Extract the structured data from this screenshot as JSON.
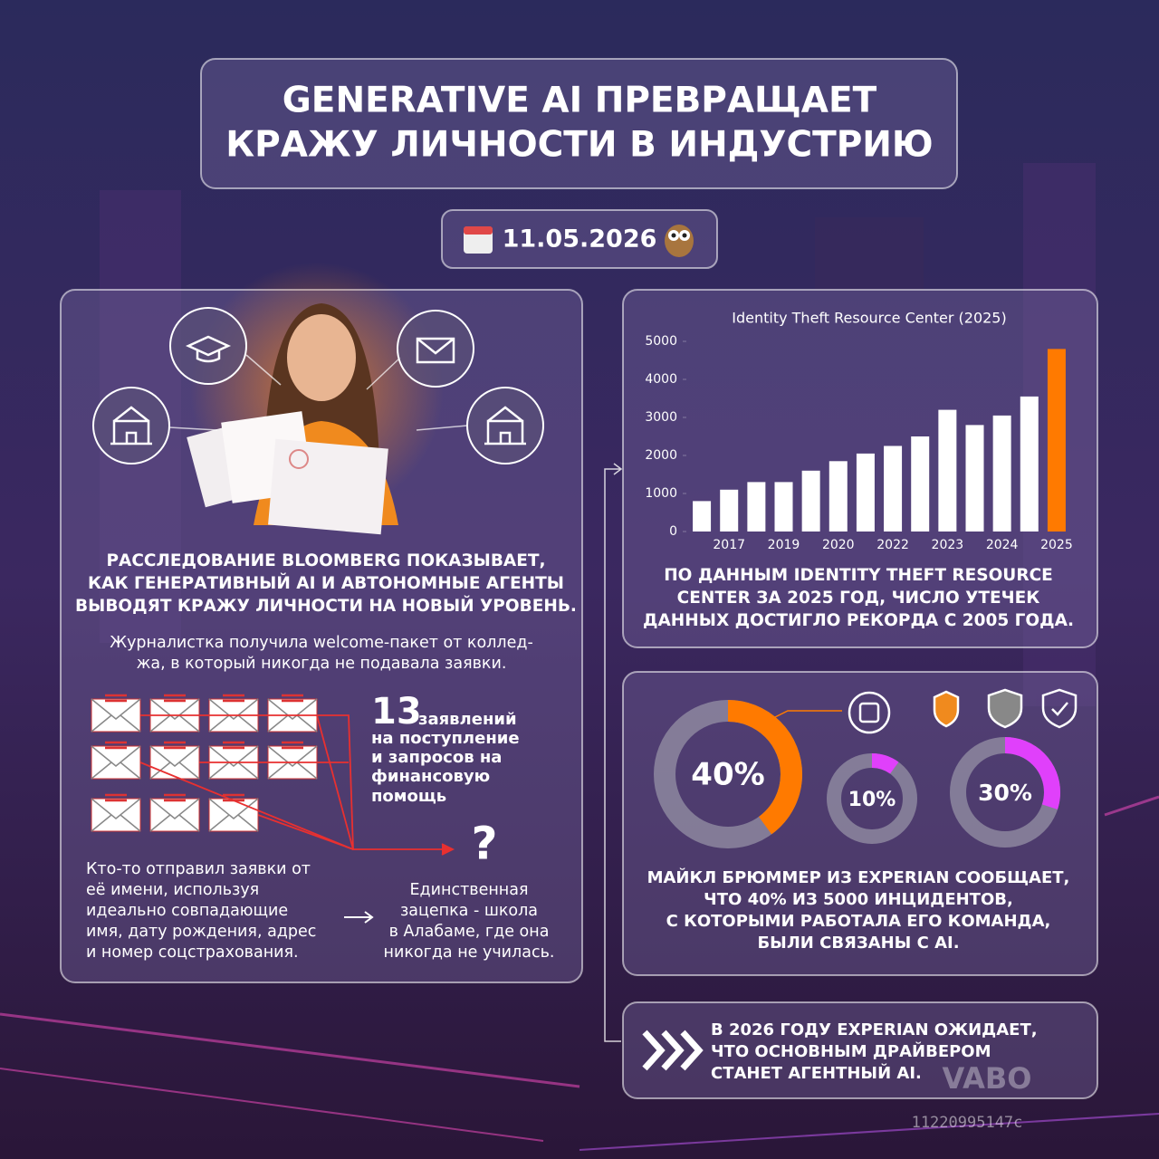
{
  "title": [
    "GENERATIVE AI ПРЕВРАЩАЕТ",
    "КРАЖУ ЛИЧНОСТИ В ИНДУСТРИЮ"
  ],
  "date": "11.05.2026",
  "left_panel": {
    "headline": [
      "РАССЛЕДОВАНИЕ BLOOMBERG ПОКАЗЫВАЕТ,",
      "КАК ГЕНЕРАТИВНЫЙ AI И АВТОНОМНЫЕ АГЕНТЫ",
      "ВЫВОДЯТ КРАЖУ ЛИЧНОСТИ НА НОВЫЙ УРОВЕНЬ."
    ],
    "intro": [
      "Журналистка получила welcome-пакет от коллед-",
      "жа, в который никогда не подавала заявки."
    ],
    "count": "13",
    "count_text": [
      "заявлений",
      "на поступление",
      "и запросов на",
      "финансовую",
      "помощь"
    ],
    "question": "?",
    "left_text": [
      "Кто-то отправил заявки от",
      "её имени, используя",
      "идеально совпадающие",
      "имя, дату рождения, адрес",
      "и номер соцстрахования."
    ],
    "right_text": [
      "Единственная",
      "зацепка - школа",
      "в Алабаме, где она",
      "никогда не училась."
    ]
  },
  "chart_data": [
    {
      "type": "bar",
      "title": "Identity Theft Resource Center (2025)",
      "categories": [
        null,
        "2017",
        null,
        "2019",
        null,
        "2020",
        null,
        "2022",
        null,
        "2023",
        null,
        "2024",
        null,
        "2025"
      ],
      "values": [
        800,
        1100,
        1300,
        1300,
        1600,
        1850,
        2050,
        2250,
        2500,
        3200,
        2800,
        3050,
        3550,
        4800
      ],
      "colors": [
        "#ffffff",
        "#ffffff",
        "#ffffff",
        "#ffffff",
        "#ffffff",
        "#ffffff",
        "#ffffff",
        "#ffffff",
        "#ffffff",
        "#ffffff",
        "#ffffff",
        "#ffffff",
        "#ffffff",
        "#ff7a00"
      ],
      "ylim": [
        0,
        5000
      ],
      "yticks": [
        0,
        1000,
        2000,
        3000,
        4000,
        5000
      ]
    },
    {
      "type": "donut",
      "values": [
        40,
        10,
        30
      ],
      "value_labels": [
        "40%",
        "10%",
        "30%"
      ],
      "colors": [
        "#ff7a00",
        "#e040fb",
        "#e040fb"
      ]
    }
  ],
  "chart_caption": [
    "ПО ДАННЫМ IDENTITY THEFT RESOURCE",
    "CENTER ЗА 2025 ГОД, ЧИСЛО УТЕЧЕК",
    "ДАННЫХ ДОСТИГЛО РЕКОРДА С 2005 ГОДА."
  ],
  "experian_text": [
    "МАЙКЛ БРЮММЕР ИЗ EXPERIAN СООБЩАЕТ,",
    "ЧТО 40% ИЗ 5000 ИНЦИДЕНТОВ,",
    "С КОТОРЫМИ РАБОТАЛА ЕГО КОМАНДА,",
    "БЫЛИ СВЯЗАНЫ С AI."
  ],
  "footer_text": [
    "В 2026 ГОДУ EXPERIAN ОЖИДАЕТ,",
    "ЧТО ОСНОВНЫМ ДРАЙВЕРОМ",
    "СТАНЕТ АГЕНТНЫЙ AI."
  ],
  "watermark": "VABO",
  "image_id": "11220995147c"
}
